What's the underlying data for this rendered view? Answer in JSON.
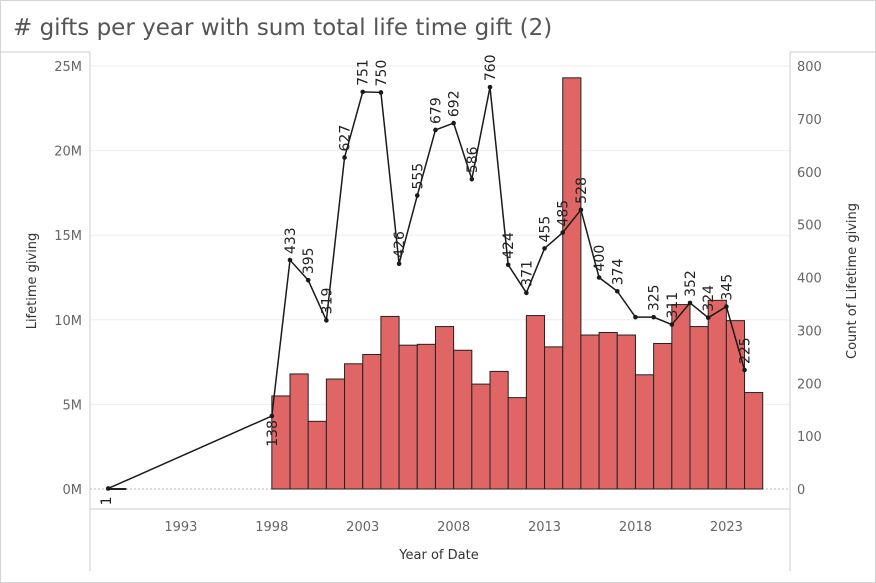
{
  "title": "# gifts per year with sum  total life time gift (2)",
  "colors": {
    "bar": "#e06666",
    "bar_stroke": "#222222",
    "line": "#1a1a1a",
    "grid": "#eeeeee",
    "axis": "#cccccc"
  },
  "chart_data": {
    "type": "bar",
    "title": "# gifts per year with sum  total life time gift (2)",
    "xlabel": "Year of Date",
    "ylabel": "Lifetime giving",
    "y2label": "Count of Lifetime giving",
    "xlim": [
      1988,
      2026.5
    ],
    "ylim": [
      0,
      25000000
    ],
    "y2lim": [
      0,
      800
    ],
    "x_ticks": [
      1993,
      1998,
      2003,
      2008,
      2013,
      2018,
      2023
    ],
    "y_ticks": [
      {
        "v": 0,
        "label": "0M"
      },
      {
        "v": 5000000,
        "label": "5M"
      },
      {
        "v": 10000000,
        "label": "10M"
      },
      {
        "v": 15000000,
        "label": "15M"
      },
      {
        "v": 20000000,
        "label": "20M"
      },
      {
        "v": 25000000,
        "label": "25M"
      }
    ],
    "y2_ticks": [
      0,
      100,
      200,
      300,
      400,
      500,
      600,
      700,
      800
    ],
    "grid": true,
    "bars": {
      "name": "Lifetime giving",
      "x": [
        1990,
        1999,
        2000,
        2001,
        2002,
        2003,
        2004,
        2005,
        2006,
        2007,
        2008,
        2009,
        2010,
        2011,
        2012,
        2013,
        2014,
        2015,
        2016,
        2017,
        2018,
        2019,
        2020,
        2021,
        2022,
        2023,
        2024,
        2025
      ],
      "values": [
        20000,
        5500000,
        6800000,
        4000000,
        6500000,
        7400000,
        7950000,
        10200000,
        8500000,
        8550000,
        9600000,
        8200000,
        6200000,
        6950000,
        5400000,
        10250000,
        8400000,
        24300000,
        9100000,
        9250000,
        9100000,
        6750000,
        8600000,
        10900000,
        9600000,
        11150000,
        9950000,
        5700000
      ]
    },
    "line": {
      "name": "Count of Lifetime giving",
      "x": [
        1989,
        1998,
        1999,
        2000,
        2001,
        2002,
        2003,
        2004,
        2005,
        2006,
        2007,
        2008,
        2009,
        2010,
        2011,
        2012,
        2013,
        2014,
        2015,
        2016,
        2017,
        2018,
        2019,
        2020,
        2021,
        2022,
        2023,
        2024
      ],
      "values": [
        1,
        138,
        433,
        395,
        319,
        627,
        751,
        750,
        426,
        555,
        679,
        692,
        586,
        760,
        424,
        371,
        455,
        485,
        528,
        400,
        374,
        325,
        325,
        311,
        352,
        324,
        345,
        225
      ],
      "labels": [
        "1",
        "138",
        "433",
        "395",
        "319",
        "627",
        "751",
        "750",
        "426",
        "555",
        "679",
        "692",
        "586",
        "760",
        "424",
        "371",
        "455",
        "485",
        "528",
        "400",
        "374",
        "",
        "325",
        "311",
        "352",
        "324",
        "345",
        "225"
      ]
    }
  }
}
